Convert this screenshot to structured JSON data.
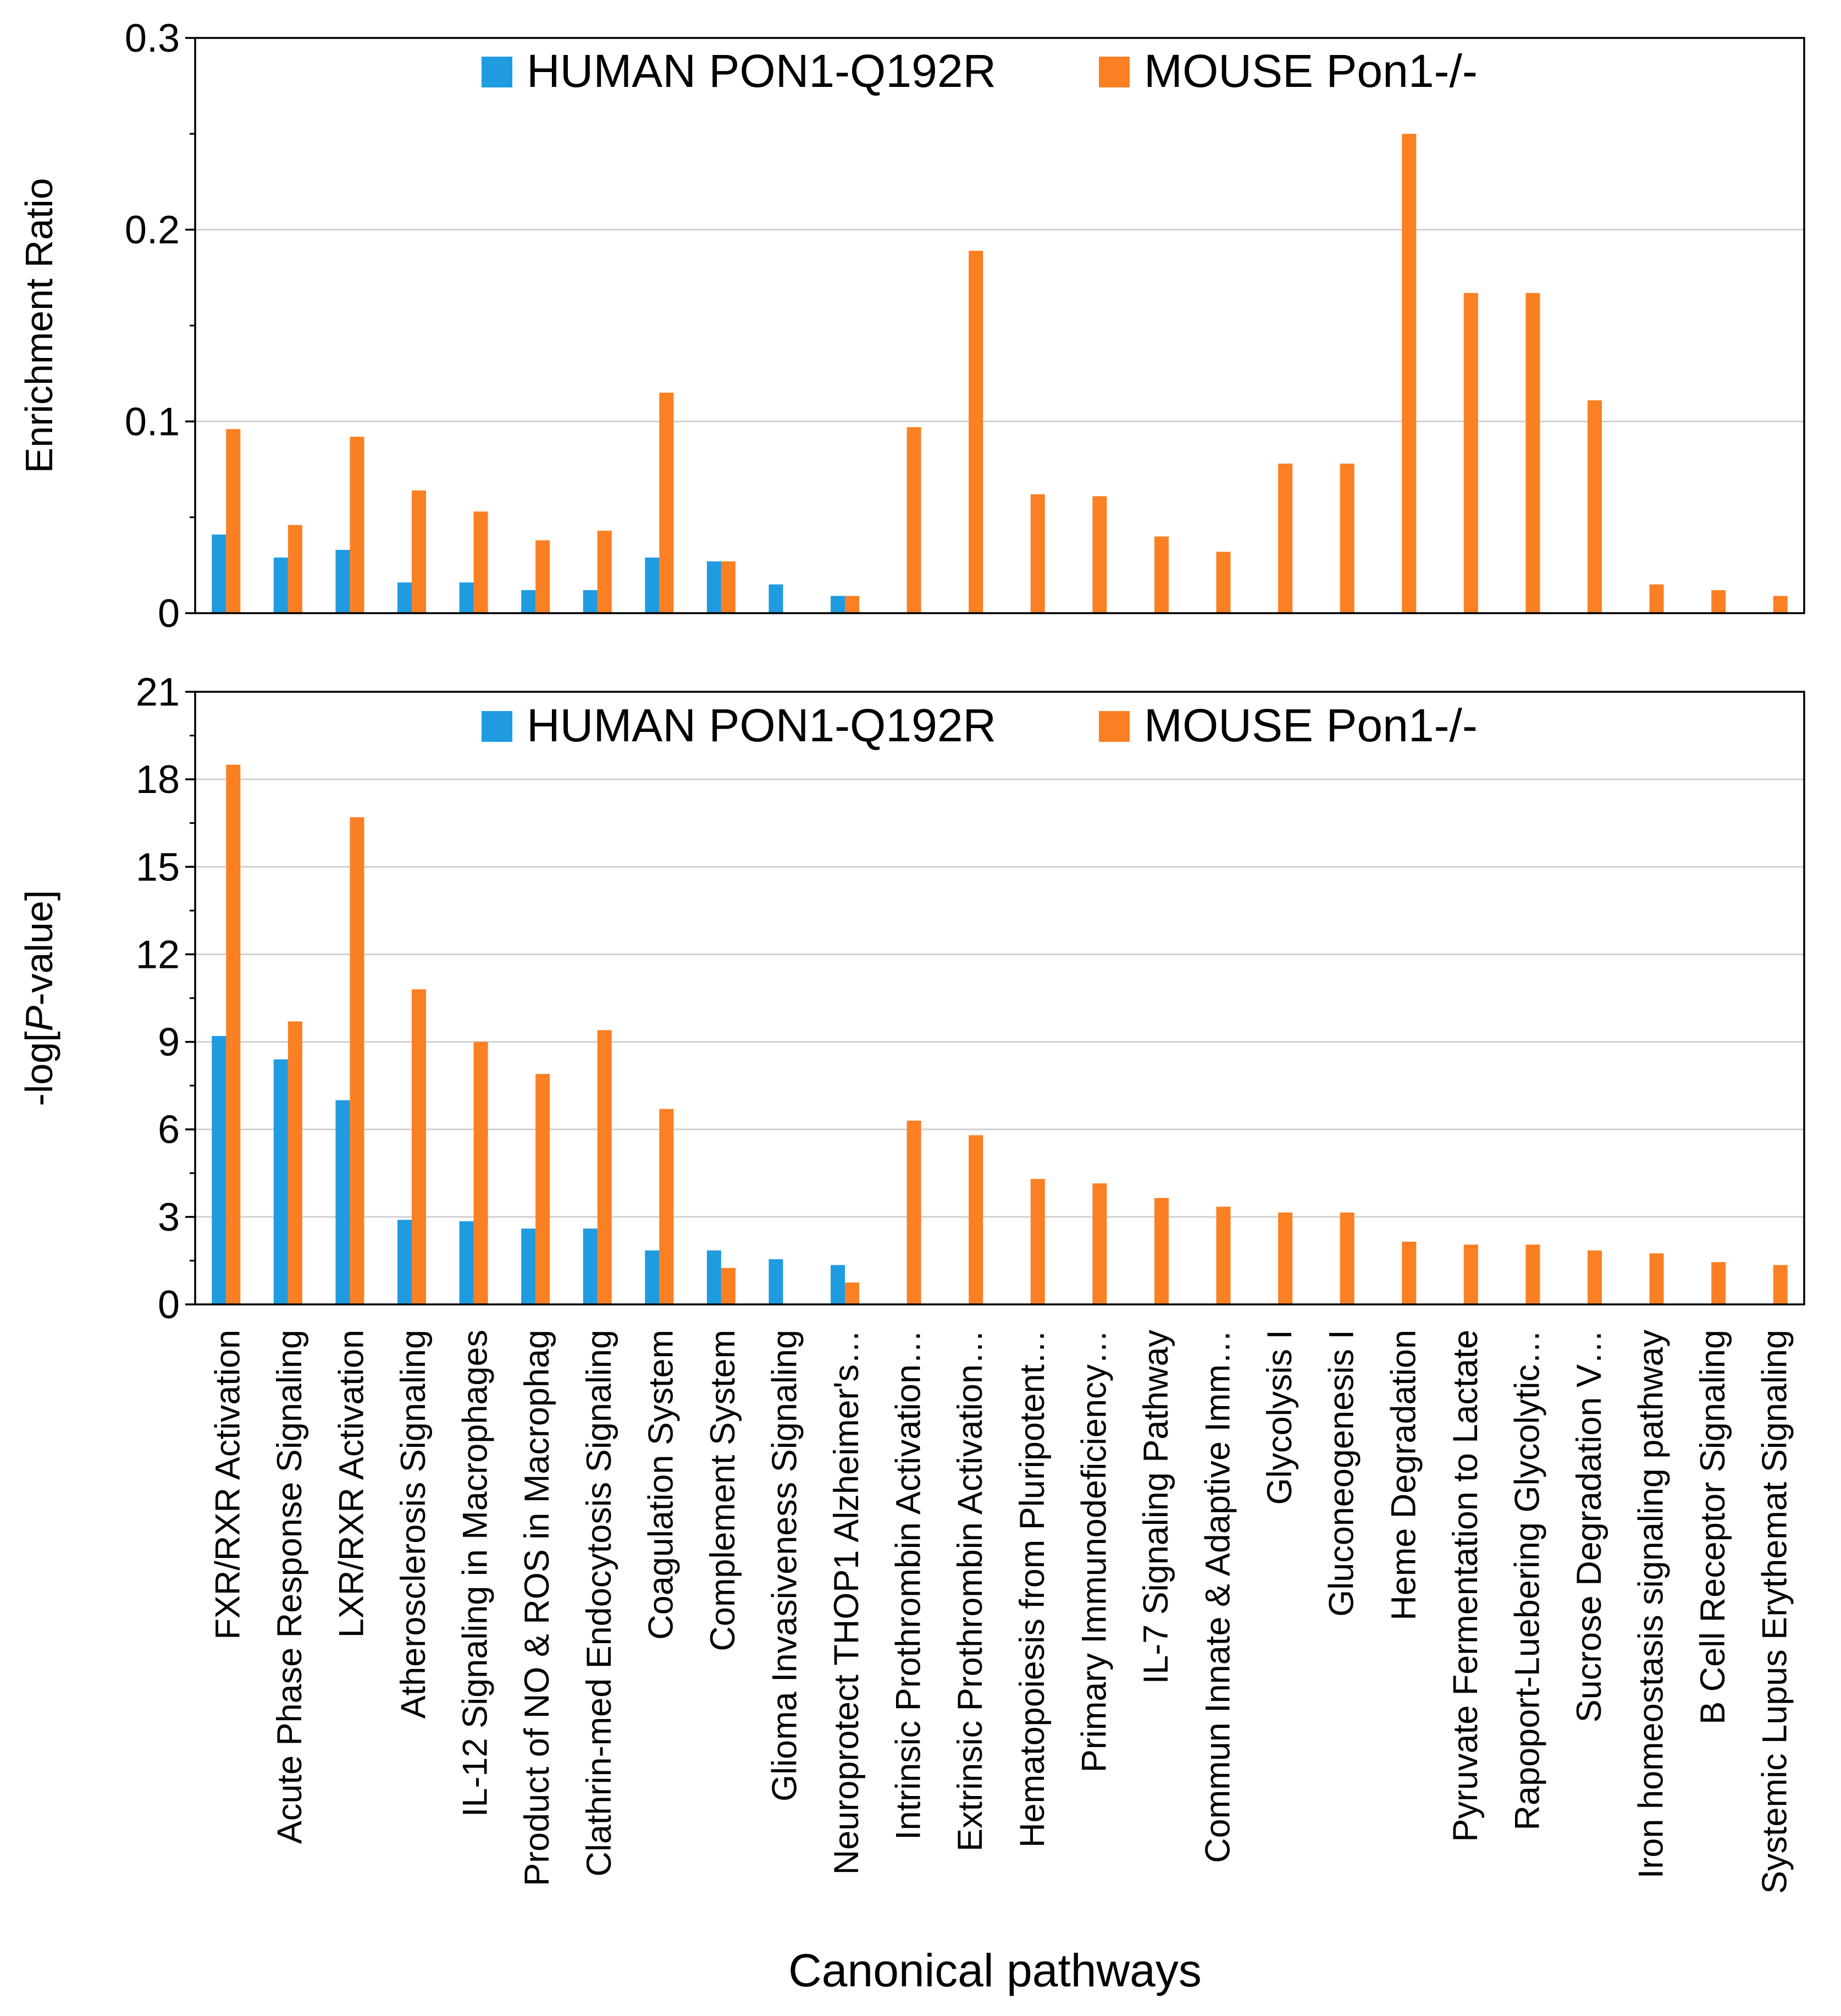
{
  "colors": {
    "human": "#1f9be0",
    "mouse": "#fb7f23",
    "grid": "#d0d0d0",
    "axis": "#000000"
  },
  "legend": {
    "human": "HUMAN PON1-Q192R",
    "mouse": "MOUSE Pon1-/-"
  },
  "xaxis": {
    "label": "Canonical pathways"
  },
  "chart_data": [
    {
      "type": "bar",
      "ylabel": "Enrichment Ratio",
      "ylim": [
        0,
        0.3
      ],
      "yticks": [
        "0",
        "0.1",
        "0.2",
        "0.3"
      ],
      "grid": true,
      "legend_position": "top",
      "categories": [
        "FXR/RXR Activation",
        "Acute Phase Response Signaling",
        "LXR/RXR Activation",
        "Atherosclerosis Signaling",
        "IL-12 Signaling in Macrophages",
        "Product of NO & ROS in Macrophag",
        "Clathrin-med Endocytosis Signaling",
        "Coagulation System",
        "Complement System",
        "Glioma Invasiveness Signaling",
        "Neuroprotect THOP1 Alzheimer's…",
        "Intrinsic Prothrombin Activation…",
        "Extrinsic Prothrombin Activation…",
        "Hematopoiesis from Pluripotent…",
        "Primary Immunodeficiency…",
        "IL-7 Signaling Pathway",
        "Commun Innate & Adaptive Imm…",
        "Glycolysis I",
        "Gluconeogenesis I",
        "Heme Degradation",
        "Pyruvate Fermentation to Lactate",
        "Rapoport-Luebering Glycolytic…",
        "Sucrose Degradation V…",
        "Iron homeostasis signaling pathway",
        "B Cell Receptor Signaling",
        "Systemic Lupus Erythemat Signaling"
      ],
      "series": [
        {
          "name": "HUMAN PON1-Q192R",
          "values": [
            0.041,
            0.029,
            0.033,
            0.016,
            0.016,
            0.012,
            0.012,
            0.029,
            0.027,
            0.015,
            0.009,
            0,
            0,
            0,
            0,
            0,
            0,
            0,
            0,
            0,
            0,
            0,
            0,
            0,
            0,
            0
          ]
        },
        {
          "name": "MOUSE Pon1-/-",
          "values": [
            0.096,
            0.046,
            0.092,
            0.064,
            0.053,
            0.038,
            0.043,
            0.115,
            0.027,
            0,
            0.009,
            0.097,
            0.189,
            0.062,
            0.061,
            0.04,
            0.032,
            0.078,
            0.078,
            0.25,
            0.167,
            0.167,
            0.111,
            0.015,
            0.012,
            0.009
          ]
        }
      ]
    },
    {
      "type": "bar",
      "ylabel_prefix": "-log[",
      "ylabel_italic": "P",
      "ylabel_suffix": "-value]",
      "ylim": [
        0,
        21
      ],
      "yticks": [
        "0",
        "3",
        "6",
        "9",
        "12",
        "15",
        "18",
        "21"
      ],
      "grid": true,
      "legend_position": "top",
      "series": [
        {
          "name": "HUMAN PON1-Q192R",
          "values": [
            9.2,
            8.4,
            7.0,
            2.9,
            2.85,
            2.6,
            2.6,
            1.85,
            1.85,
            1.55,
            1.35,
            0,
            0,
            0,
            0,
            0,
            0,
            0,
            0,
            0,
            0,
            0,
            0,
            0,
            0,
            0
          ]
        },
        {
          "name": "MOUSE Pon1-/-",
          "values": [
            18.5,
            9.7,
            16.7,
            10.8,
            9.0,
            7.9,
            9.4,
            6.7,
            1.25,
            0,
            0.75,
            6.3,
            5.8,
            4.3,
            4.15,
            3.65,
            3.35,
            3.15,
            3.15,
            2.15,
            2.05,
            2.05,
            1.85,
            1.75,
            1.45,
            1.35
          ]
        }
      ]
    }
  ]
}
